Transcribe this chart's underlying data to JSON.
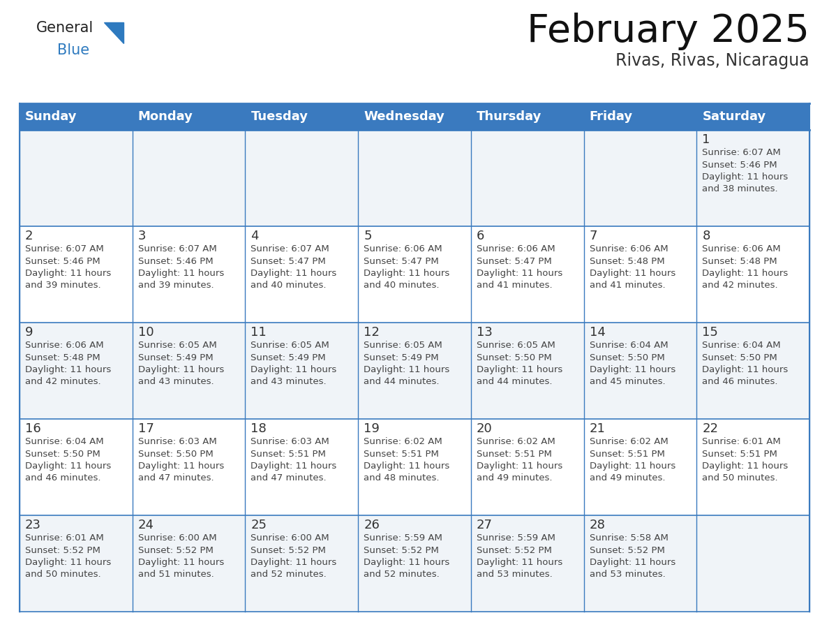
{
  "title": "February 2025",
  "subtitle": "Rivas, Rivas, Nicaragua",
  "days_of_week": [
    "Sunday",
    "Monday",
    "Tuesday",
    "Wednesday",
    "Thursday",
    "Friday",
    "Saturday"
  ],
  "header_bg": "#3a7abf",
  "header_text": "#ffffff",
  "cell_bg_odd": "#f0f4f8",
  "cell_bg_even": "#ffffff",
  "border_color": "#3a7abf",
  "day_number_color": "#333333",
  "text_color": "#444444",
  "logo_general_color": "#222222",
  "logo_blue_color": "#2e7abf",
  "logo_triangle_color": "#2e7abf",
  "title_color": "#111111",
  "subtitle_color": "#333333",
  "calendar_data": [
    [
      null,
      null,
      null,
      null,
      null,
      null,
      1
    ],
    [
      2,
      3,
      4,
      5,
      6,
      7,
      8
    ],
    [
      9,
      10,
      11,
      12,
      13,
      14,
      15
    ],
    [
      16,
      17,
      18,
      19,
      20,
      21,
      22
    ],
    [
      23,
      24,
      25,
      26,
      27,
      28,
      null
    ]
  ],
  "sun_set_data": {
    "1": [
      "6:07 AM",
      "5:46 PM",
      "11 hours",
      "and 38 minutes."
    ],
    "2": [
      "6:07 AM",
      "5:46 PM",
      "11 hours",
      "and 39 minutes."
    ],
    "3": [
      "6:07 AM",
      "5:46 PM",
      "11 hours",
      "and 39 minutes."
    ],
    "4": [
      "6:07 AM",
      "5:47 PM",
      "11 hours",
      "and 40 minutes."
    ],
    "5": [
      "6:06 AM",
      "5:47 PM",
      "11 hours",
      "and 40 minutes."
    ],
    "6": [
      "6:06 AM",
      "5:47 PM",
      "11 hours",
      "and 41 minutes."
    ],
    "7": [
      "6:06 AM",
      "5:48 PM",
      "11 hours",
      "and 41 minutes."
    ],
    "8": [
      "6:06 AM",
      "5:48 PM",
      "11 hours",
      "and 42 minutes."
    ],
    "9": [
      "6:06 AM",
      "5:48 PM",
      "11 hours",
      "and 42 minutes."
    ],
    "10": [
      "6:05 AM",
      "5:49 PM",
      "11 hours",
      "and 43 minutes."
    ],
    "11": [
      "6:05 AM",
      "5:49 PM",
      "11 hours",
      "and 43 minutes."
    ],
    "12": [
      "6:05 AM",
      "5:49 PM",
      "11 hours",
      "and 44 minutes."
    ],
    "13": [
      "6:05 AM",
      "5:50 PM",
      "11 hours",
      "and 44 minutes."
    ],
    "14": [
      "6:04 AM",
      "5:50 PM",
      "11 hours",
      "and 45 minutes."
    ],
    "15": [
      "6:04 AM",
      "5:50 PM",
      "11 hours",
      "and 46 minutes."
    ],
    "16": [
      "6:04 AM",
      "5:50 PM",
      "11 hours",
      "and 46 minutes."
    ],
    "17": [
      "6:03 AM",
      "5:50 PM",
      "11 hours",
      "and 47 minutes."
    ],
    "18": [
      "6:03 AM",
      "5:51 PM",
      "11 hours",
      "and 47 minutes."
    ],
    "19": [
      "6:02 AM",
      "5:51 PM",
      "11 hours",
      "and 48 minutes."
    ],
    "20": [
      "6:02 AM",
      "5:51 PM",
      "11 hours",
      "and 49 minutes."
    ],
    "21": [
      "6:02 AM",
      "5:51 PM",
      "11 hours",
      "and 49 minutes."
    ],
    "22": [
      "6:01 AM",
      "5:51 PM",
      "11 hours",
      "and 50 minutes."
    ],
    "23": [
      "6:01 AM",
      "5:52 PM",
      "11 hours",
      "and 50 minutes."
    ],
    "24": [
      "6:00 AM",
      "5:52 PM",
      "11 hours",
      "and 51 minutes."
    ],
    "25": [
      "6:00 AM",
      "5:52 PM",
      "11 hours",
      "and 52 minutes."
    ],
    "26": [
      "5:59 AM",
      "5:52 PM",
      "11 hours",
      "and 52 minutes."
    ],
    "27": [
      "5:59 AM",
      "5:52 PM",
      "11 hours",
      "and 53 minutes."
    ],
    "28": [
      "5:58 AM",
      "5:52 PM",
      "11 hours",
      "and 53 minutes."
    ]
  }
}
